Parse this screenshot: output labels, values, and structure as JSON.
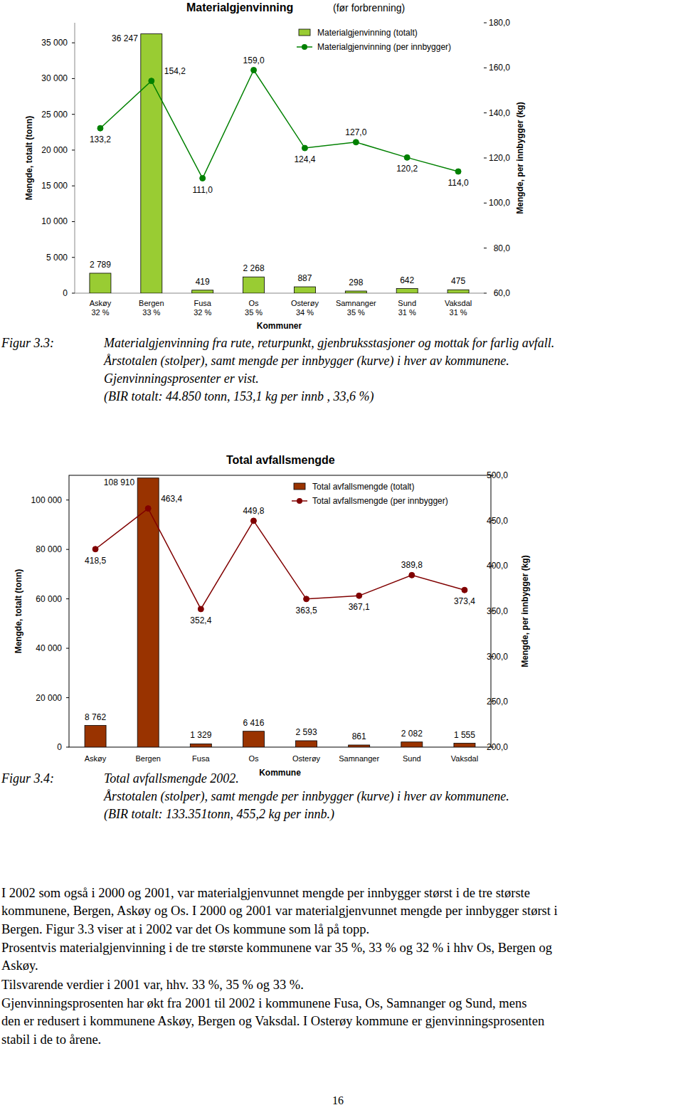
{
  "chart_data": [
    {
      "type": "bar",
      "title": "Materialgjenvinning",
      "subtitle": "(før forbrenning)",
      "x_label": "Kommuner",
      "y_label": "Mengde, totalt (tonn)",
      "y2_label": "Mengde, per innbygger (kg)",
      "categories": [
        "Askøy",
        "Bergen",
        "Fusa",
        "Os",
        "Osterøy",
        "Samnanger",
        "Sund",
        "Vaksdal"
      ],
      "percentages": [
        32,
        33,
        32,
        35,
        34,
        35,
        31,
        31
      ],
      "percentage_labels": [
        "32 %",
        "33 %",
        "32 %",
        "35 %",
        "34 %",
        "35 %",
        "31 %",
        "31 %"
      ],
      "series": [
        {
          "name": "Materialgjenvinning (totalt)",
          "type": "bar",
          "color": "#99cc33",
          "values": [
            2789,
            36247,
            419,
            2268,
            887,
            298,
            642,
            475
          ],
          "value_labels": [
            "2 789",
            "36 247",
            "419",
            "2 268",
            "887",
            "298",
            "642",
            "475"
          ]
        },
        {
          "name": "Materialgjenvinning (per innbygger)",
          "type": "line",
          "color": "#008000",
          "marker": "circle",
          "axis": "y2",
          "values": [
            133.2,
            154.2,
            111.0,
            159.0,
            124.4,
            127.0,
            120.2,
            114.0
          ],
          "value_labels": [
            "133,2",
            "154,2",
            "111,0",
            "159,0",
            "124,4",
            "127,0",
            "120,2",
            "114,0"
          ]
        }
      ],
      "ylim": [
        0,
        37800
      ],
      "yticks": [
        0,
        {
          "value": 5000,
          "label": "5 000"
        },
        {
          "value": 10000,
          "label": "10 000"
        },
        {
          "value": 15000,
          "label": "15 000"
        },
        {
          "value": 20000,
          "label": "20 000"
        },
        {
          "value": 25000,
          "label": "25 000"
        },
        {
          "value": 30000,
          "label": "30 000"
        },
        {
          "value": 35000,
          "label": "35 000"
        }
      ],
      "y2lim": [
        60,
        180
      ],
      "y2ticks": [
        {
          "value": 60,
          "label": "60,0"
        },
        {
          "value": 80,
          "label": "80,0"
        },
        {
          "value": 100,
          "label": "100,0"
        },
        {
          "value": 120,
          "label": "120,0"
        },
        {
          "value": 140,
          "label": "140,0"
        },
        {
          "value": 160,
          "label": "160,0"
        },
        {
          "value": 180,
          "label": "180,0"
        }
      ],
      "data_labels": true,
      "legend": "top",
      "grid": false
    },
    {
      "type": "bar",
      "title": "Total avfallsmengde",
      "x_label": "Kommune",
      "y_label": "Mengde, totalt (tonn)",
      "y2_label": "Mengde, per innbygger (kg)",
      "categories": [
        "Askøy",
        "Bergen",
        "Fusa",
        "Os",
        "Osterøy",
        "Samnanger",
        "Sund",
        "Vaksdal"
      ],
      "series": [
        {
          "name": "Total avfallsmengde (totalt)",
          "type": "bar",
          "color": "#993300",
          "values": [
            8762,
            108910,
            1329,
            6416,
            2593,
            861,
            2082,
            1555
          ],
          "value_labels": [
            "8 762",
            "108 910",
            "1 329",
            "6 416",
            "2 593",
            "861",
            "2 082",
            "1 555"
          ]
        },
        {
          "name": "Total avfallsmengde (per innbygger)",
          "type": "line",
          "color": "#800000",
          "marker": "circle",
          "axis": "y2",
          "values": [
            418.5,
            463.4,
            352.4,
            449.8,
            363.5,
            367.1,
            389.8,
            373.4
          ],
          "value_labels": [
            "418,5",
            "463,4",
            "352,4",
            "449,8",
            "363,5",
            "367,1",
            "389,8",
            "373,4"
          ]
        }
      ],
      "ylim": [
        0,
        110000
      ],
      "yticks": [
        0,
        {
          "value": 20000,
          "label": "20 000"
        },
        {
          "value": 40000,
          "label": "40 000"
        },
        {
          "value": 60000,
          "label": "60 000"
        },
        {
          "value": 80000,
          "label": "80 000"
        },
        {
          "value": 100000,
          "label": "100 000"
        }
      ],
      "y2lim": [
        200,
        500
      ],
      "y2ticks": [
        {
          "value": 200,
          "label": "200,0"
        },
        {
          "value": 250,
          "label": "250,0"
        },
        {
          "value": 300,
          "label": "300,0"
        },
        {
          "value": 350,
          "label": "350,0"
        },
        {
          "value": 400,
          "label": "400,0"
        },
        {
          "value": 450,
          "label": "450,0"
        },
        {
          "value": 500,
          "label": "500,0"
        }
      ],
      "data_labels": true,
      "legend": "top",
      "grid": false
    }
  ],
  "captions": [
    {
      "label": "Figur 3.3:",
      "lines": [
        "Materialgjenvinning fra rute, returpunkt, gjenbruksstasjoner og mottak for farlig avfall.",
        "Årstotalen (stolper), samt mengde per innbygger (kurve) i hver av kommunene.",
        "Gjenvinningsprosenter er vist.",
        "(BIR totalt: 44.850 tonn, 153,1 kg per innb , 33,6 %)"
      ]
    },
    {
      "label": "Figur 3.4:",
      "lines": [
        "Total avfallsmengde 2002.",
        "Årstotalen (stolper), samt mengde per innbygger (kurve) i hver av kommunene.",
        "(BIR totalt: 133.351tonn, 455,2 kg per innb.)"
      ]
    }
  ],
  "body": [
    "I 2002 som også i 2000 og 2001, var materialgjenvunnet mengde per innbygger størst i de tre største",
    "kommunene, Bergen, Askøy og Os. I 2000 og 2001 var materialgjenvunnet mengde per innbygger størst i",
    "Bergen. Figur 3.3 viser at i 2002 var det Os kommune som lå på topp.",
    "Prosentvis materialgjenvinning i de tre største kommunene var 35 %, 33 % og 32 % i hhv Os, Bergen og",
    "Askøy.",
    "Tilsvarende verdier i 2001 var, hhv. 33 %, 35 % og 33 %.",
    "Gjenvinningsprosenten har økt fra 2001 til 2002 i kommunene Fusa, Os, Samnanger og Sund, mens",
    "den er redusert i kommunene Askøy, Bergen og Vaksdal. I Osterøy kommune er gjenvinningsprosenten",
    "stabil i de to årene."
  ],
  "page_number": 16
}
